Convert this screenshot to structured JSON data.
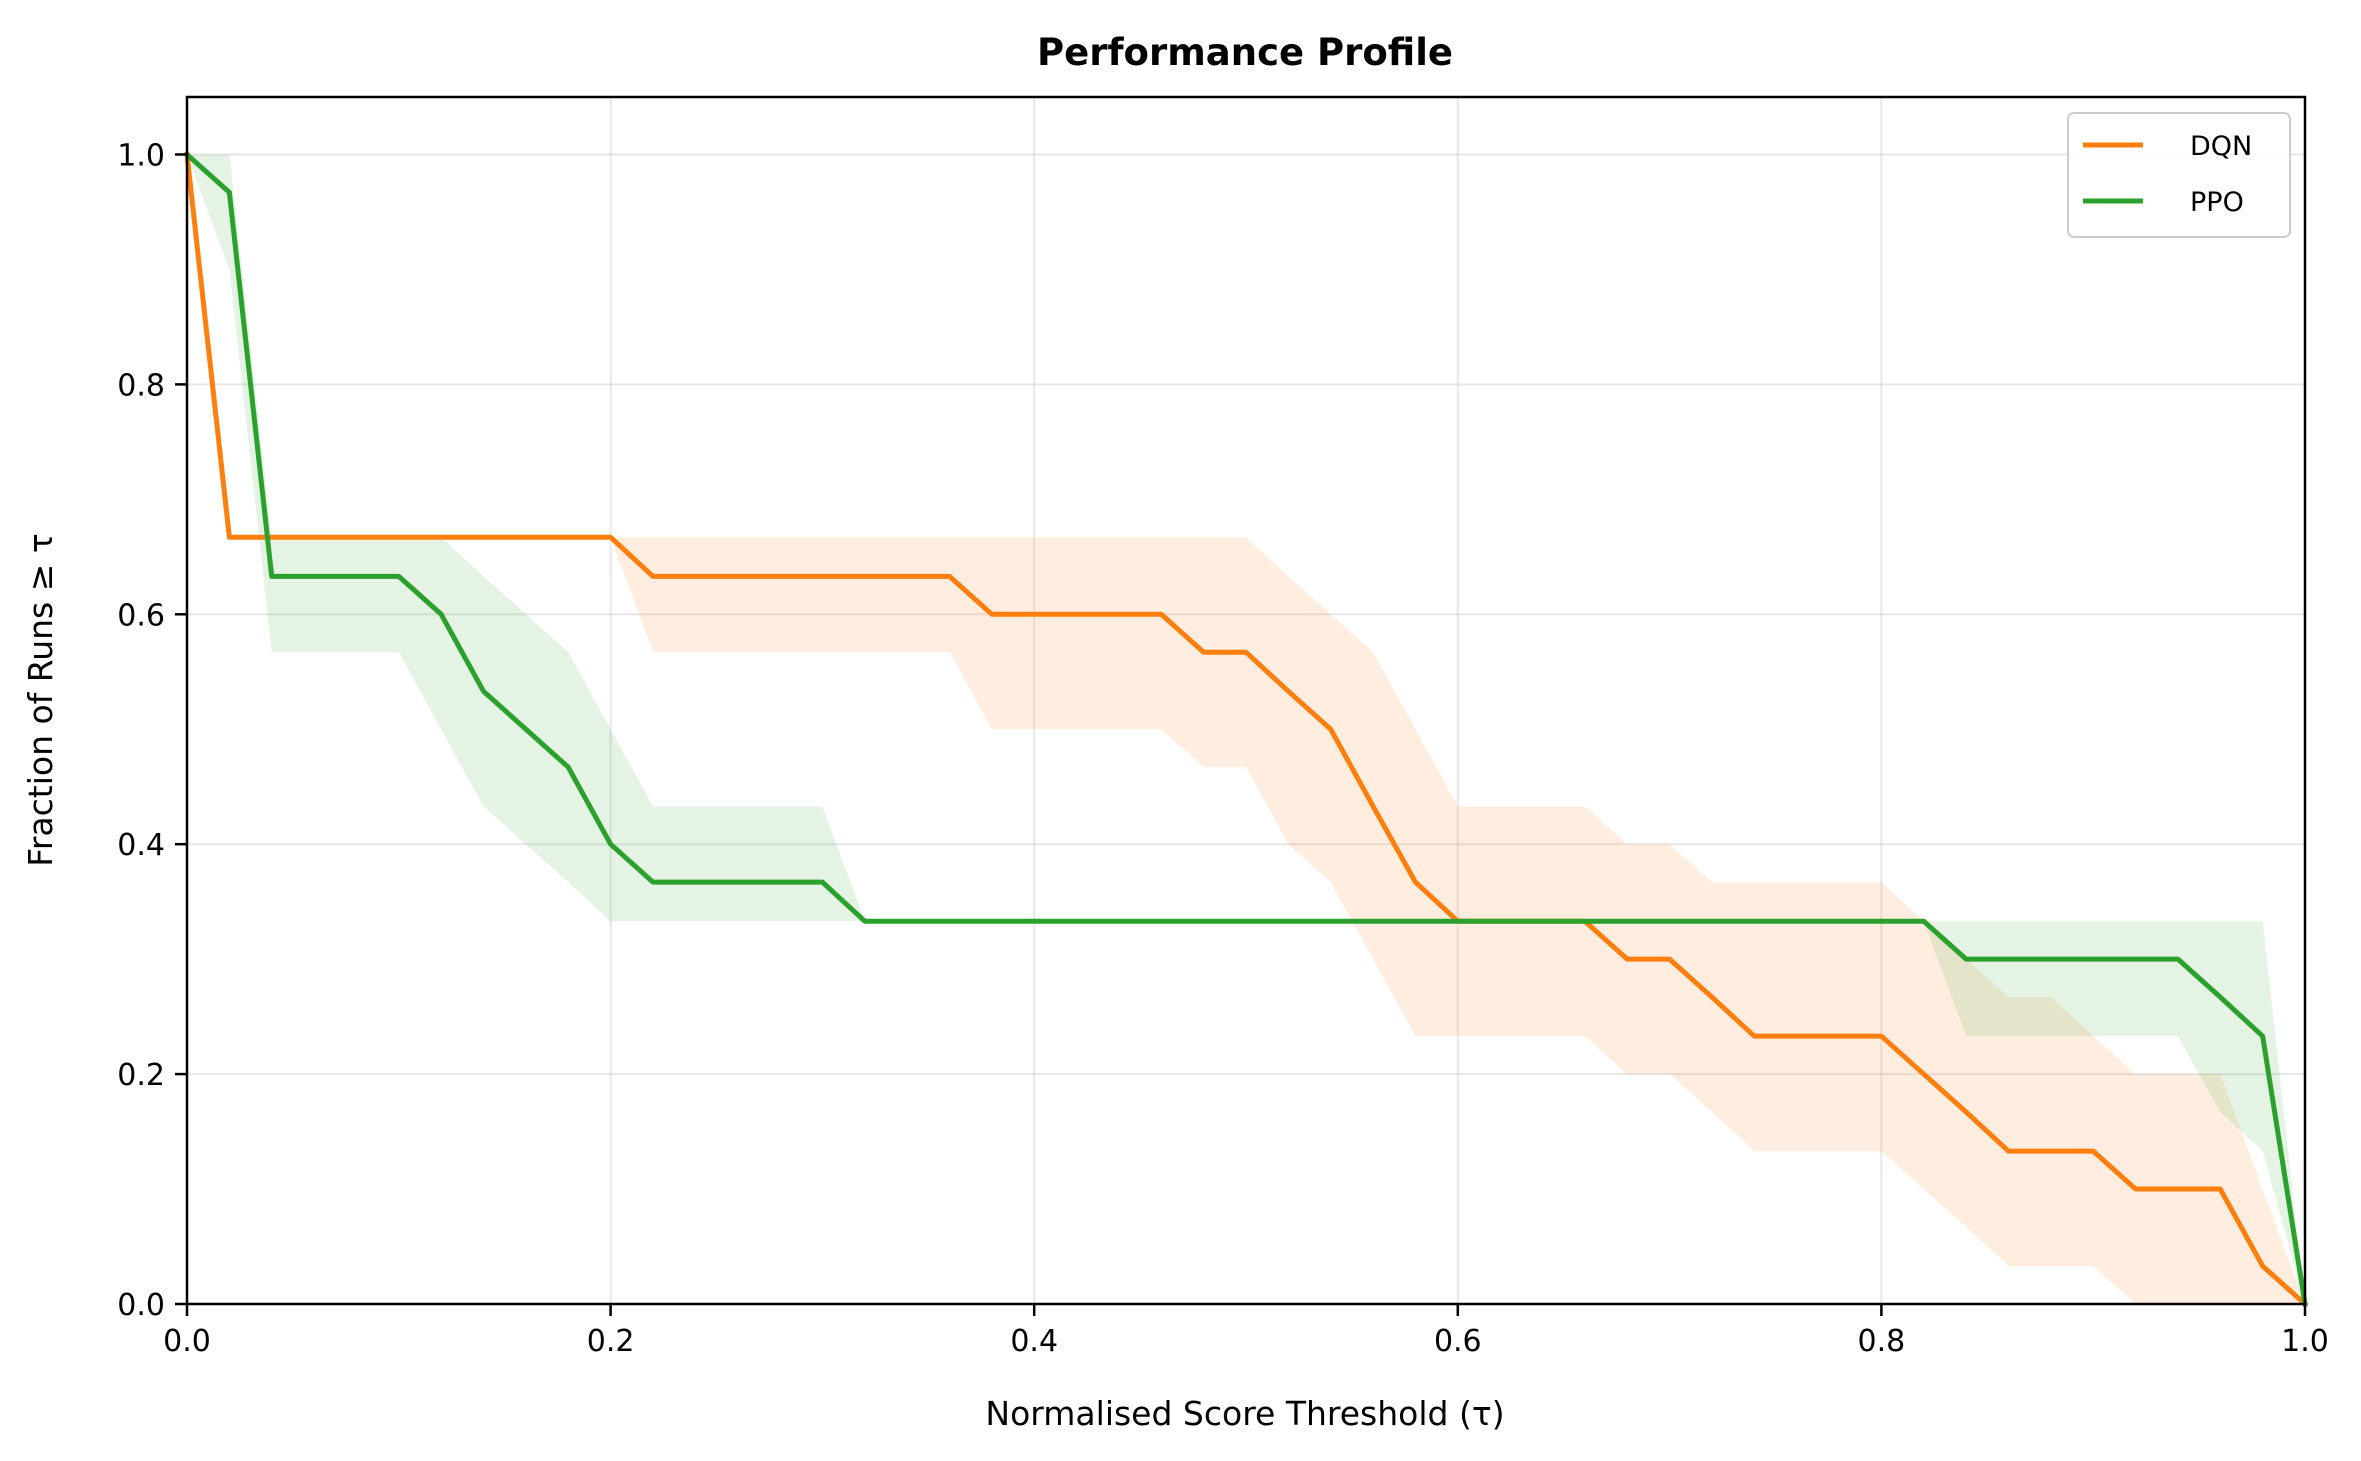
{
  "chart_data": {
    "type": "line",
    "title": "Performance Profile",
    "xlabel": "Normalised Score Threshold (τ)",
    "ylabel": "Fraction of Runs ≥ τ",
    "xlim": [
      0,
      1
    ],
    "ylim": [
      0,
      1.05
    ],
    "xticks": [
      "0.0",
      "0.2",
      "0.4",
      "0.6",
      "0.8",
      "1.0"
    ],
    "yticks": [
      "0.0",
      "0.2",
      "0.4",
      "0.6",
      "0.8",
      "1.0"
    ],
    "grid": true,
    "legend_position": "top-right",
    "x": [
      0.0,
      0.02,
      0.04,
      0.06,
      0.08,
      0.1,
      0.12,
      0.14,
      0.16,
      0.18,
      0.2,
      0.22,
      0.24,
      0.26,
      0.28,
      0.3,
      0.32,
      0.34,
      0.36,
      0.38,
      0.4,
      0.42,
      0.44,
      0.46,
      0.48,
      0.5,
      0.52,
      0.54,
      0.56,
      0.58,
      0.6,
      0.62,
      0.64,
      0.66,
      0.68,
      0.7,
      0.72,
      0.74,
      0.76,
      0.78,
      0.8,
      0.82,
      0.84,
      0.86,
      0.88,
      0.9,
      0.92,
      0.94,
      0.96,
      0.98,
      1.0
    ],
    "series": [
      {
        "name": "DQN",
        "color": "#ff7f0e",
        "values": [
          1.0,
          0.667,
          0.667,
          0.667,
          0.667,
          0.667,
          0.667,
          0.667,
          0.667,
          0.667,
          0.667,
          0.633,
          0.633,
          0.633,
          0.633,
          0.633,
          0.633,
          0.633,
          0.633,
          0.6,
          0.6,
          0.6,
          0.6,
          0.6,
          0.567,
          0.567,
          0.533,
          0.5,
          0.433,
          0.367,
          0.333,
          0.333,
          0.333,
          0.333,
          0.3,
          0.3,
          0.267,
          0.233,
          0.233,
          0.233,
          0.233,
          0.2,
          0.167,
          0.133,
          0.133,
          0.133,
          0.1,
          0.1,
          0.1,
          0.033,
          0.0
        ],
        "lower": [
          1.0,
          0.667,
          0.667,
          0.667,
          0.667,
          0.667,
          0.667,
          0.667,
          0.667,
          0.667,
          0.667,
          0.567,
          0.567,
          0.567,
          0.567,
          0.567,
          0.567,
          0.567,
          0.567,
          0.5,
          0.5,
          0.5,
          0.5,
          0.5,
          0.467,
          0.467,
          0.4,
          0.367,
          0.3,
          0.233,
          0.233,
          0.233,
          0.233,
          0.233,
          0.2,
          0.2,
          0.167,
          0.133,
          0.133,
          0.133,
          0.133,
          0.1,
          0.067,
          0.033,
          0.033,
          0.033,
          0.0,
          0.0,
          0.0,
          0.0,
          0.0
        ],
        "upper": [
          1.0,
          0.667,
          0.667,
          0.667,
          0.667,
          0.667,
          0.667,
          0.667,
          0.667,
          0.667,
          0.667,
          0.667,
          0.667,
          0.667,
          0.667,
          0.667,
          0.667,
          0.667,
          0.667,
          0.667,
          0.667,
          0.667,
          0.667,
          0.667,
          0.667,
          0.667,
          0.633,
          0.6,
          0.567,
          0.5,
          0.433,
          0.433,
          0.433,
          0.433,
          0.4,
          0.4,
          0.367,
          0.367,
          0.367,
          0.367,
          0.367,
          0.333,
          0.3,
          0.267,
          0.267,
          0.233,
          0.2,
          0.2,
          0.2,
          0.1,
          0.0
        ]
      },
      {
        "name": "PPO",
        "color": "#2ca02c",
        "values": [
          1.0,
          0.967,
          0.633,
          0.633,
          0.633,
          0.633,
          0.6,
          0.533,
          0.5,
          0.467,
          0.4,
          0.367,
          0.367,
          0.367,
          0.367,
          0.367,
          0.333,
          0.333,
          0.333,
          0.333,
          0.333,
          0.333,
          0.333,
          0.333,
          0.333,
          0.333,
          0.333,
          0.333,
          0.333,
          0.333,
          0.333,
          0.333,
          0.333,
          0.333,
          0.333,
          0.333,
          0.333,
          0.333,
          0.333,
          0.333,
          0.333,
          0.333,
          0.3,
          0.3,
          0.3,
          0.3,
          0.3,
          0.3,
          0.267,
          0.233,
          0.0
        ],
        "lower": [
          1.0,
          0.9,
          0.567,
          0.567,
          0.567,
          0.567,
          0.5,
          0.433,
          0.4,
          0.367,
          0.333,
          0.333,
          0.333,
          0.333,
          0.333,
          0.333,
          0.333,
          0.333,
          0.333,
          0.333,
          0.333,
          0.333,
          0.333,
          0.333,
          0.333,
          0.333,
          0.333,
          0.333,
          0.333,
          0.333,
          0.333,
          0.333,
          0.333,
          0.333,
          0.333,
          0.333,
          0.333,
          0.333,
          0.333,
          0.333,
          0.333,
          0.333,
          0.233,
          0.233,
          0.233,
          0.233,
          0.233,
          0.233,
          0.167,
          0.133,
          0.0
        ],
        "upper": [
          1.0,
          1.0,
          0.667,
          0.667,
          0.667,
          0.667,
          0.667,
          0.633,
          0.6,
          0.567,
          0.5,
          0.433,
          0.433,
          0.433,
          0.433,
          0.433,
          0.333,
          0.333,
          0.333,
          0.333,
          0.333,
          0.333,
          0.333,
          0.333,
          0.333,
          0.333,
          0.333,
          0.333,
          0.333,
          0.333,
          0.333,
          0.333,
          0.333,
          0.333,
          0.333,
          0.333,
          0.333,
          0.333,
          0.333,
          0.333,
          0.333,
          0.333,
          0.333,
          0.333,
          0.333,
          0.333,
          0.333,
          0.333,
          0.333,
          0.333,
          0.0
        ]
      }
    ]
  }
}
